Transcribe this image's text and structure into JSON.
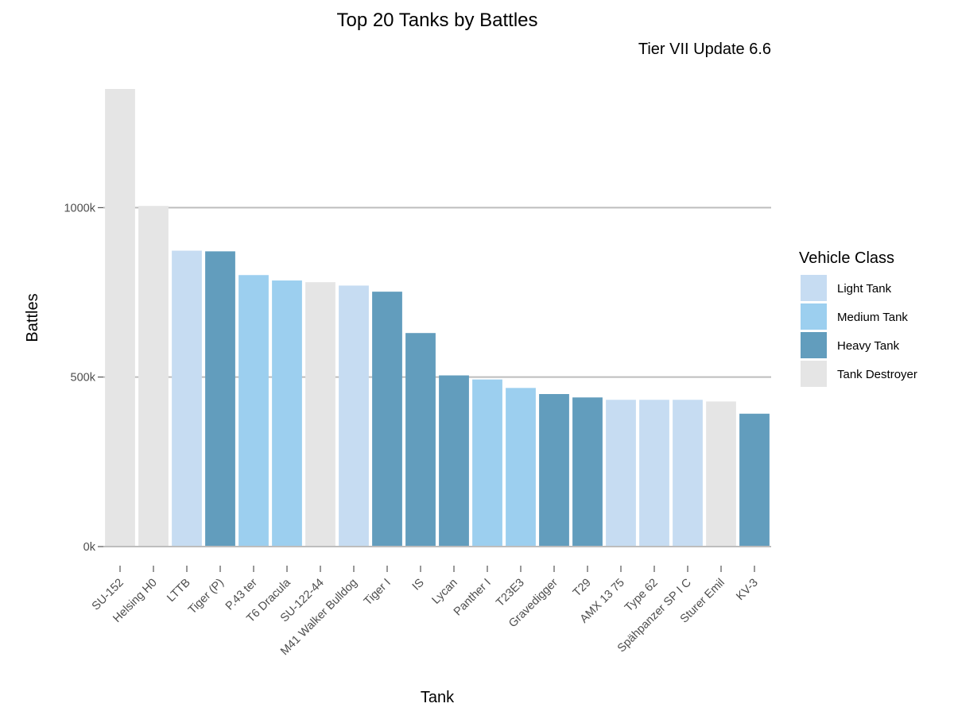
{
  "chart_data": {
    "type": "bar",
    "title": "Top 20 Tanks by Battles",
    "subtitle": "Tier VII Update 6.6",
    "xlabel": "Tank",
    "ylabel": "Battles",
    "ylim": [
      0,
      1350000
    ],
    "yticks": [
      {
        "value": 0,
        "label": "0k"
      },
      {
        "value": 500000,
        "label": "500k"
      },
      {
        "value": 1000000,
        "label": "1000k"
      }
    ],
    "grid": "horizontal major lines",
    "legend": {
      "title": "Vehicle Class",
      "placement": "right",
      "entries": [
        {
          "label": "Light Tank",
          "color": "#c6dcf2"
        },
        {
          "label": "Medium Tank",
          "color": "#9ccfef"
        },
        {
          "label": "Heavy Tank",
          "color": "#629dbd"
        },
        {
          "label": "Tank Destroyer",
          "color": "#e5e5e5"
        }
      ]
    },
    "categories": [
      "SU-152",
      "Helsing H0",
      "LTTB",
      "Tiger (P)",
      "P.43 ter",
      "T6 Dracula",
      "SU-122-44",
      "M41 Walker Bulldog",
      "Tiger I",
      "IS",
      "Lycan",
      "Panther I",
      "T23E3",
      "Gravedigger",
      "T29",
      "AMX 13 75",
      "Type 62",
      "Spähpanzer SP I C",
      "Sturer Emil",
      "KV-3"
    ],
    "values": [
      1350000,
      1005000,
      873000,
      871000,
      801000,
      785000,
      780000,
      770000,
      752000,
      630000,
      505000,
      493000,
      468000,
      450000,
      440000,
      433000,
      433000,
      433000,
      428000,
      392000
    ],
    "classes": [
      "Tank Destroyer",
      "Tank Destroyer",
      "Light Tank",
      "Heavy Tank",
      "Medium Tank",
      "Medium Tank",
      "Tank Destroyer",
      "Light Tank",
      "Heavy Tank",
      "Heavy Tank",
      "Heavy Tank",
      "Medium Tank",
      "Medium Tank",
      "Heavy Tank",
      "Heavy Tank",
      "Light Tank",
      "Light Tank",
      "Light Tank",
      "Tank Destroyer",
      "Heavy Tank"
    ]
  }
}
